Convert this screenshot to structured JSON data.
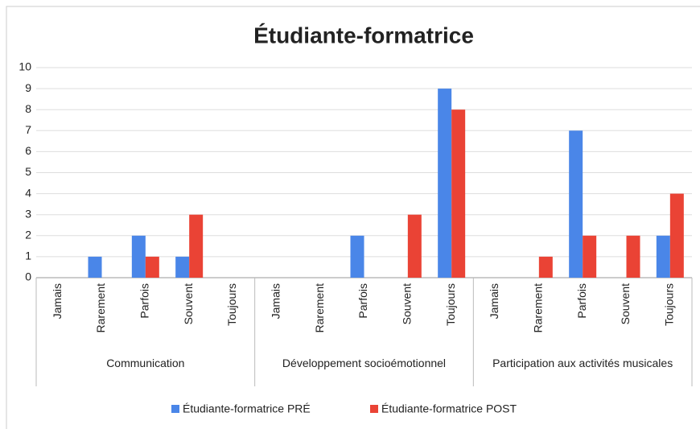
{
  "chart_data": {
    "type": "bar",
    "title": "Étudiante-formatrice",
    "groups": [
      {
        "name": "Communication",
        "categories": [
          "Jamais",
          "Rarement",
          "Parfois",
          "Souvent",
          "Toujours"
        ]
      },
      {
        "name": "Développement socioémotionnel",
        "categories": [
          "Jamais",
          "Rarement",
          "Parfois",
          "Souvent",
          "Toujours"
        ]
      },
      {
        "name": "Participation aux activités musicales",
        "categories": [
          "Jamais",
          "Rarement",
          "Parfois",
          "Souvent",
          "Toujours"
        ]
      }
    ],
    "series": [
      {
        "name": "Étudiante-formatrice PRÉ",
        "color": "#4a86e8",
        "values": [
          0,
          1,
          2,
          1,
          0,
          0,
          0,
          2,
          0,
          9,
          0,
          0,
          7,
          0,
          2
        ]
      },
      {
        "name": "Étudiante-formatrice POST",
        "color": "#ea4335",
        "values": [
          0,
          0,
          1,
          3,
          0,
          0,
          0,
          0,
          3,
          8,
          0,
          1,
          2,
          2,
          4
        ]
      }
    ],
    "ylim": [
      0,
      10
    ],
    "yticks": [
      0,
      1,
      2,
      3,
      4,
      5,
      6,
      7,
      8,
      9,
      10
    ],
    "grid": true,
    "legend": "bottom"
  }
}
